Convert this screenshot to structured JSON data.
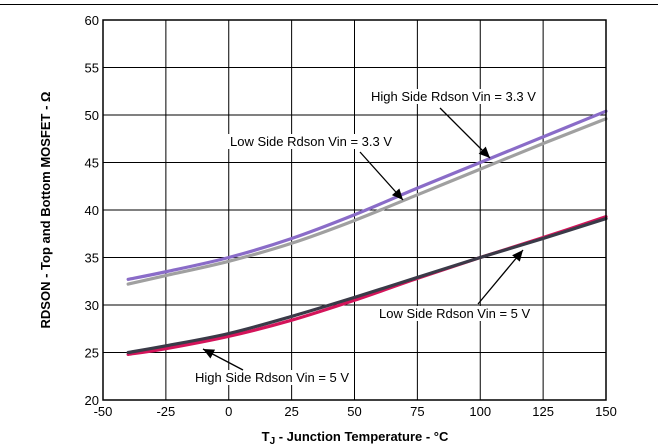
{
  "chart_data": {
    "type": "line",
    "xlabel_main": "T",
    "xlabel_sub": "J",
    "xlabel_rest": " - Junction Temperature - °C",
    "ylabel": "RDSON - Top and Bottom MOSFET - Ω",
    "xlim": [
      -50,
      150
    ],
    "ylim": [
      20,
      60
    ],
    "xticks": [
      -50,
      -25,
      0,
      25,
      50,
      75,
      100,
      125,
      150
    ],
    "yticks": [
      20,
      25,
      30,
      35,
      40,
      45,
      50,
      55,
      60
    ],
    "grid": true,
    "series": [
      {
        "name": "High Side Rdson Vin = 3.3 V",
        "color": "#8a6cc8",
        "x": [
          -40,
          -25,
          0,
          25,
          50,
          75,
          100,
          125,
          150
        ],
        "y": [
          32.7,
          33.5,
          35.0,
          37.0,
          39.5,
          42.3,
          45.0,
          47.7,
          50.4
        ]
      },
      {
        "name": "Low Side Rdson Vin = 3.3 V",
        "color": "#a0a0a0",
        "x": [
          -40,
          -25,
          0,
          25,
          50,
          75,
          100,
          125,
          150
        ],
        "y": [
          32.2,
          33.1,
          34.6,
          36.5,
          38.9,
          41.6,
          44.3,
          47.0,
          49.6
        ]
      },
      {
        "name": "High Side Rdson Vin = 5 V",
        "color": "#d4145a",
        "x": [
          -40,
          -25,
          0,
          25,
          50,
          75,
          100,
          125,
          150
        ],
        "y": [
          24.8,
          25.4,
          26.7,
          28.4,
          30.5,
          32.8,
          35.0,
          37.1,
          39.3
        ]
      },
      {
        "name": "Low Side Rdson Vin = 5 V",
        "color": "#3a3a48",
        "x": [
          -40,
          -25,
          0,
          25,
          50,
          75,
          100,
          125,
          150
        ],
        "y": [
          25.0,
          25.7,
          27.0,
          28.8,
          30.8,
          32.9,
          35.0,
          37.0,
          39.1
        ]
      }
    ],
    "annotations": [
      {
        "text": "High Side Rdson Vin = 3.3 V",
        "series": 0
      },
      {
        "text": "Low Side Rdson Vin = 3.3 V",
        "series": 1
      },
      {
        "text": "Low Side Rdson Vin = 5 V",
        "series": 3
      },
      {
        "text": "High Side Rdson Vin = 5 V",
        "series": 2
      }
    ]
  }
}
